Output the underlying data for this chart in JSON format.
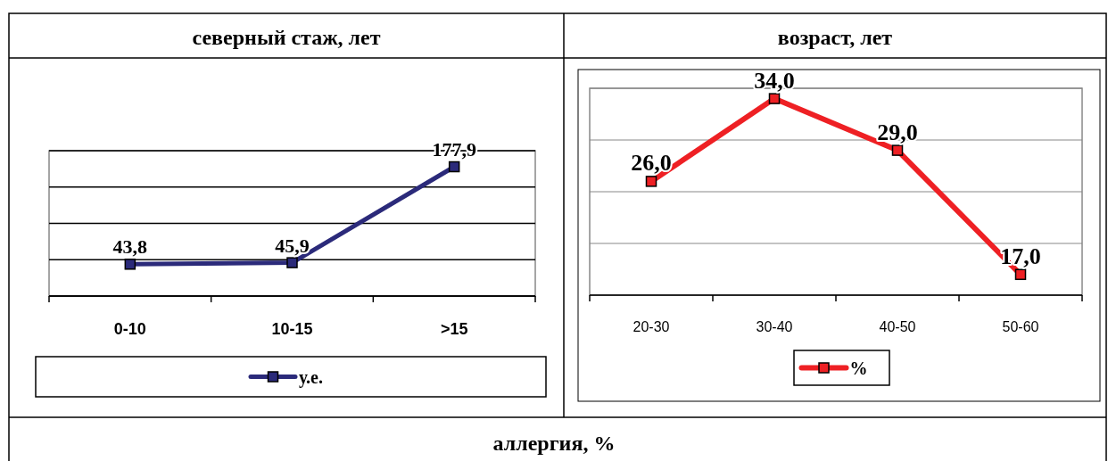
{
  "chart_data": [
    {
      "type": "line",
      "title": "северный стаж, лет",
      "categories": [
        "0-10",
        "10-15",
        ">15"
      ],
      "series": [
        {
          "name": "у.е.",
          "color": "#2b2a7a",
          "values": [
            43.8,
            45.9,
            177.9
          ],
          "value_labels": [
            "43,8",
            "45,9",
            "177,9"
          ]
        }
      ],
      "ylim": [
        0,
        200
      ],
      "yticks": [
        {
          "value": 0,
          "label": null
        },
        {
          "value": 50,
          "label": null
        },
        {
          "value": 100,
          "label": null
        },
        {
          "value": 150,
          "label": null
        },
        {
          "value": 200,
          "label": null
        }
      ],
      "tick_labels": "x",
      "grid": "y",
      "legend": "bottom",
      "marker": "square"
    },
    {
      "type": "line",
      "title": "возраст, лет",
      "categories": [
        "20-30",
        "30-40",
        "40-50",
        "50-60"
      ],
      "series": [
        {
          "name": "%",
          "color": "#ee2024",
          "values": [
            26.0,
            34.0,
            29.0,
            17.0
          ],
          "value_labels": [
            "26,0",
            "34,0",
            "29,0",
            "17,0"
          ]
        }
      ],
      "ylim": [
        15,
        35
      ],
      "yticks": [
        {
          "value": 15,
          "label": null
        },
        {
          "value": 20,
          "label": null
        },
        {
          "value": 25,
          "label": null
        },
        {
          "value": 30,
          "label": null
        },
        {
          "value": 35,
          "label": null
        }
      ],
      "tick_labels": "x",
      "grid": "y",
      "legend": "bottom",
      "marker": "square"
    },
    {
      "type": "other",
      "title": "аллергия, %"
    }
  ]
}
